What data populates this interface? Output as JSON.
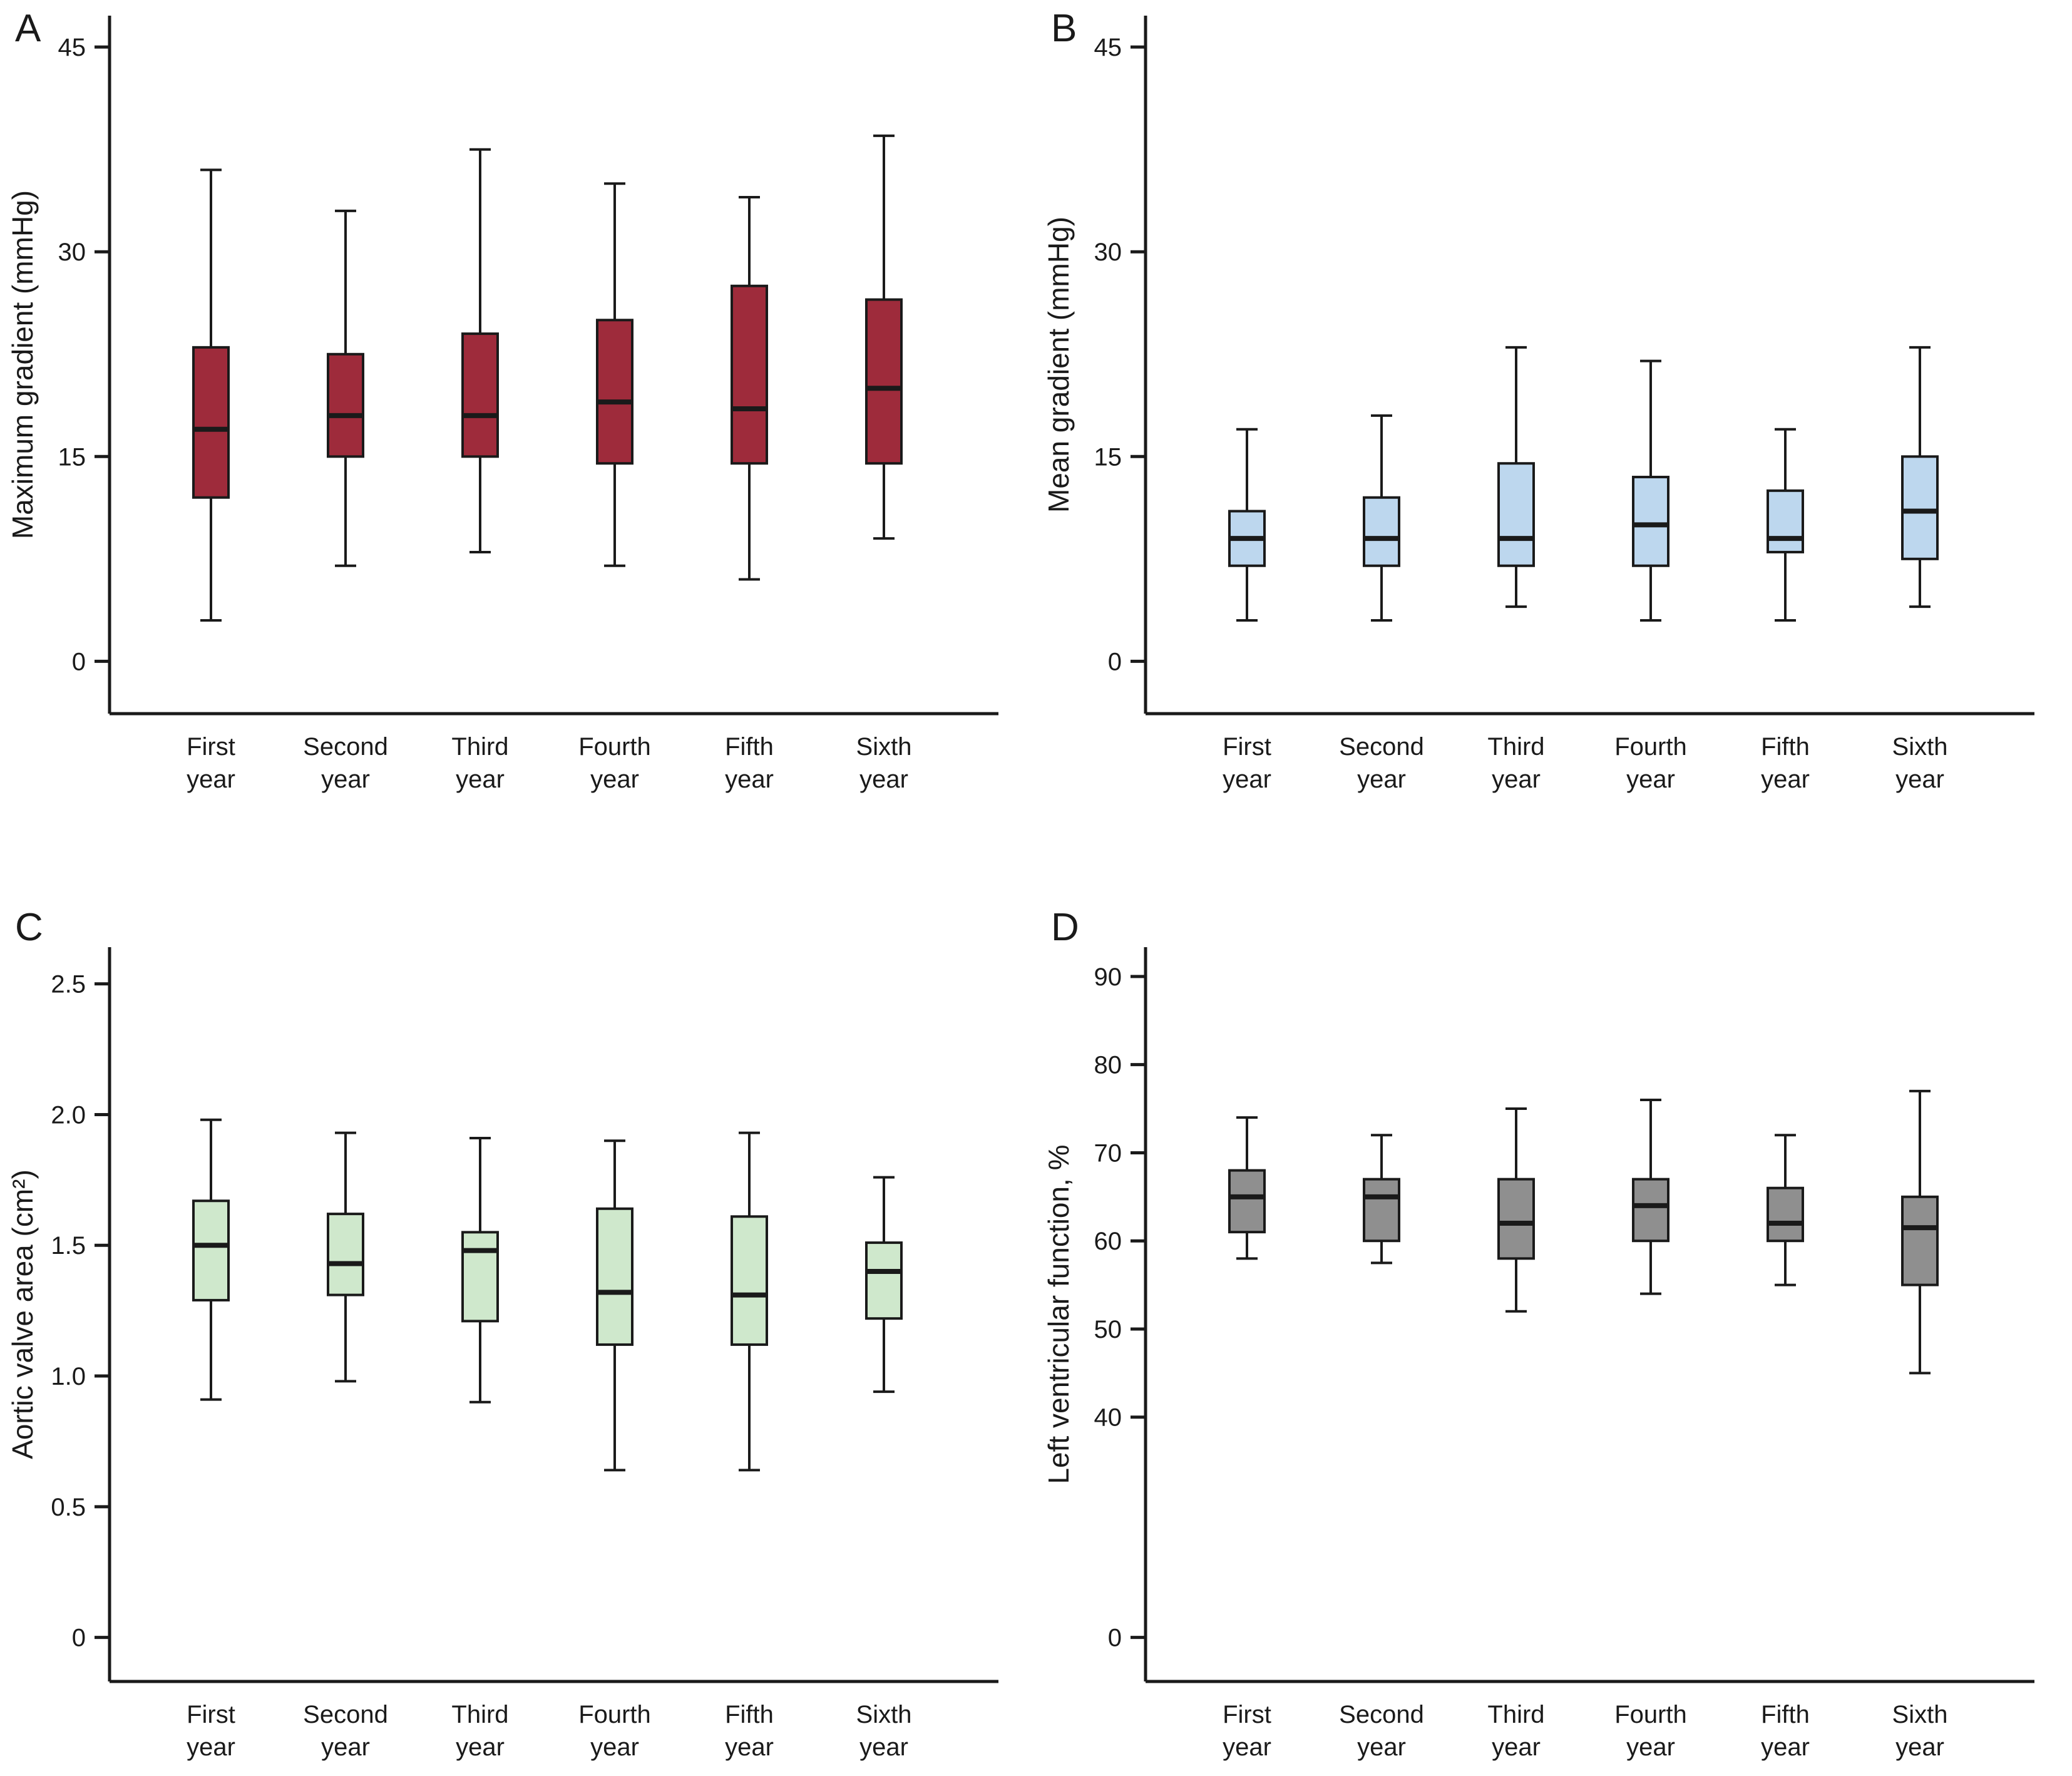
{
  "figure": {
    "description": "Four-panel box plot figure of echocardiographic follow-up over six years",
    "categories": [
      "First year",
      "Second year",
      "Third year",
      "Fourth year",
      "Fifth year",
      "Sixth year"
    ],
    "axis_color": "#1a1a1a"
  },
  "chart_data": [
    {
      "type": "box",
      "panel_label": "A",
      "ylabel": "Maximum gradient (mmHg)",
      "box_color": "#9e2b3b",
      "categories": [
        "First year",
        "Second year",
        "Third year",
        "Fourth year",
        "Fifth year",
        "Sixth year"
      ],
      "ylim": [
        0,
        45
      ],
      "y_ticks": [
        {
          "value": 0,
          "label": "0"
        },
        {
          "value": 15,
          "label": "15"
        },
        {
          "value": 30,
          "label": "30"
        },
        {
          "value": 45,
          "label": "45"
        }
      ],
      "y_scale": {
        "stops": [
          {
            "value": 0,
            "frac": 0.075
          },
          {
            "value": 45,
            "frac": 0.955
          }
        ]
      },
      "series": [
        {
          "category": "First year",
          "low": 3,
          "q1": 12,
          "median": 17,
          "q3": 23,
          "high": 36
        },
        {
          "category": "Second year",
          "low": 7,
          "q1": 15,
          "median": 18,
          "q3": 22.5,
          "high": 33
        },
        {
          "category": "Third year",
          "low": 8,
          "q1": 15,
          "median": 18,
          "q3": 24,
          "high": 37.5
        },
        {
          "category": "Fourth year",
          "low": 7,
          "q1": 14.5,
          "median": 19,
          "q3": 25,
          "high": 35
        },
        {
          "category": "Fifth year",
          "low": 6,
          "q1": 14.5,
          "median": 18.5,
          "q3": 27.5,
          "high": 34
        },
        {
          "category": "Sixth year",
          "low": 9,
          "q1": 14.5,
          "median": 20,
          "q3": 26.5,
          "high": 38.5
        }
      ]
    },
    {
      "type": "box",
      "panel_label": "B",
      "ylabel": "Mean gradient (mmHg)",
      "box_color": "#bdd7ee",
      "categories": [
        "First year",
        "Second year",
        "Third year",
        "Fourth year",
        "Fifth year",
        "Sixth year"
      ],
      "ylim": [
        0,
        45
      ],
      "y_ticks": [
        {
          "value": 0,
          "label": "0"
        },
        {
          "value": 15,
          "label": "15"
        },
        {
          "value": 30,
          "label": "30"
        },
        {
          "value": 45,
          "label": "45"
        }
      ],
      "y_scale": {
        "stops": [
          {
            "value": 0,
            "frac": 0.075
          },
          {
            "value": 45,
            "frac": 0.955
          }
        ]
      },
      "series": [
        {
          "category": "First year",
          "low": 3,
          "q1": 7,
          "median": 9,
          "q3": 11,
          "high": 17
        },
        {
          "category": "Second year",
          "low": 3,
          "q1": 7,
          "median": 9,
          "q3": 12,
          "high": 18
        },
        {
          "category": "Third year",
          "low": 4,
          "q1": 7,
          "median": 9,
          "q3": 14.5,
          "high": 23
        },
        {
          "category": "Fourth year",
          "low": 3,
          "q1": 7,
          "median": 10,
          "q3": 13.5,
          "high": 22
        },
        {
          "category": "Fifth year",
          "low": 3,
          "q1": 8,
          "median": 9,
          "q3": 12.5,
          "high": 17
        },
        {
          "category": "Sixth year",
          "low": 4,
          "q1": 7.5,
          "median": 11,
          "q3": 15,
          "high": 23
        }
      ]
    },
    {
      "type": "box",
      "panel_label": "C",
      "ylabel": "Aortic valve area (cm²)",
      "box_color": "#cfe8cc",
      "categories": [
        "First year",
        "Second year",
        "Third year",
        "Fourth year",
        "Fifth year",
        "Sixth year"
      ],
      "ylim": [
        0,
        2.5
      ],
      "y_ticks": [
        {
          "value": 0,
          "label": "0"
        },
        {
          "value": 0.5,
          "label": "0.5"
        },
        {
          "value": 1.0,
          "label": "1.0"
        },
        {
          "value": 1.5,
          "label": "1.5"
        },
        {
          "value": 2.0,
          "label": "2.0"
        },
        {
          "value": 2.5,
          "label": "2.5"
        }
      ],
      "y_scale": {
        "stops": [
          {
            "value": 0,
            "frac": 0.06
          },
          {
            "value": 2.5,
            "frac": 0.95
          }
        ]
      },
      "series": [
        {
          "category": "First year",
          "low": 0.91,
          "q1": 1.29,
          "median": 1.5,
          "q3": 1.67,
          "high": 1.98
        },
        {
          "category": "Second year",
          "low": 0.98,
          "q1": 1.31,
          "median": 1.43,
          "q3": 1.62,
          "high": 1.93
        },
        {
          "category": "Third year",
          "low": 0.9,
          "q1": 1.21,
          "median": 1.48,
          "q3": 1.55,
          "high": 1.91
        },
        {
          "category": "Fourth year",
          "low": 0.64,
          "q1": 1.12,
          "median": 1.32,
          "q3": 1.64,
          "high": 1.9
        },
        {
          "category": "Fifth year",
          "low": 0.64,
          "q1": 1.12,
          "median": 1.31,
          "q3": 1.61,
          "high": 1.93
        },
        {
          "category": "Sixth year",
          "low": 0.94,
          "q1": 1.22,
          "median": 1.4,
          "q3": 1.51,
          "high": 1.76
        }
      ]
    },
    {
      "type": "box",
      "panel_label": "D",
      "ylabel": "Left ventricular function, %",
      "box_color": "#8f8f8f",
      "categories": [
        "First year",
        "Second year",
        "Third year",
        "Fourth year",
        "Fifth year",
        "Sixth year"
      ],
      "ylim": [
        0,
        90
      ],
      "y_axis_break": true,
      "y_ticks": [
        {
          "value": 0,
          "label": "0"
        },
        {
          "value": 40,
          "label": "40"
        },
        {
          "value": 50,
          "label": "50"
        },
        {
          "value": 60,
          "label": "60"
        },
        {
          "value": 70,
          "label": "70"
        },
        {
          "value": 80,
          "label": "80"
        },
        {
          "value": 90,
          "label": "90"
        }
      ],
      "y_scale": {
        "stops": [
          {
            "value": 0,
            "frac": 0.06
          },
          {
            "value": 40,
            "frac": 0.36
          },
          {
            "value": 90,
            "frac": 0.96
          }
        ]
      },
      "series": [
        {
          "category": "First year",
          "low": 58,
          "q1": 61,
          "median": 65,
          "q3": 68,
          "high": 74
        },
        {
          "category": "Second year",
          "low": 57.5,
          "q1": 60,
          "median": 65,
          "q3": 67,
          "high": 72
        },
        {
          "category": "Third year",
          "low": 52,
          "q1": 58,
          "median": 62,
          "q3": 67,
          "high": 75
        },
        {
          "category": "Fourth year",
          "low": 54,
          "q1": 60,
          "median": 64,
          "q3": 67,
          "high": 76
        },
        {
          "category": "Fifth year",
          "low": 55,
          "q1": 60,
          "median": 62,
          "q3": 66,
          "high": 72
        },
        {
          "category": "Sixth year",
          "low": 45,
          "q1": 55,
          "median": 61.5,
          "q3": 65,
          "high": 77
        }
      ]
    }
  ]
}
